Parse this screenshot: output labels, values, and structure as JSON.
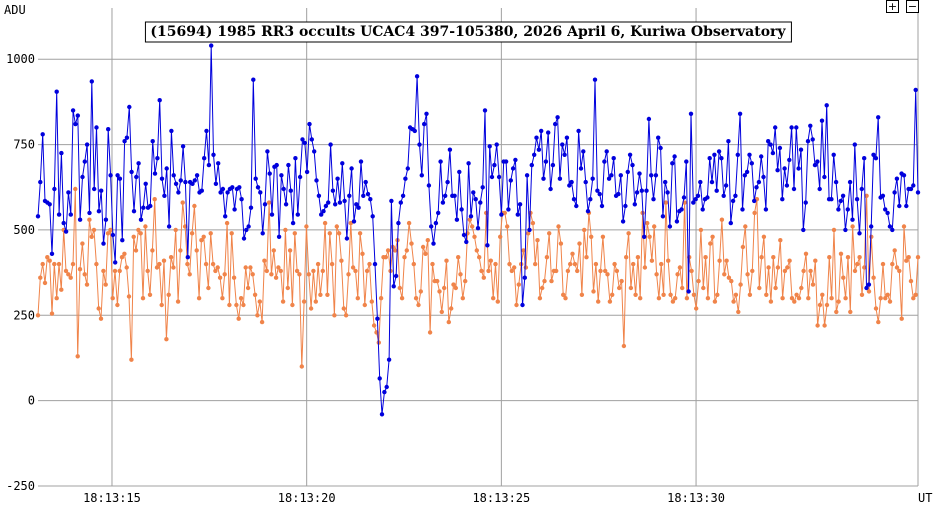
{
  "chart_data": {
    "type": "line",
    "title": "(15694) 1985 RR3 occults UCAC4 397-105380, 2026 April 6, Kuriwa Observatory",
    "ylabel": "ADU",
    "xlabel": "UT",
    "ylim": [
      -250,
      1150
    ],
    "xlim": [
      13.1,
      35.7
    ],
    "y_ticks": [
      -250,
      0,
      250,
      500,
      750,
      1000
    ],
    "x_ticks": [
      {
        "value": 15,
        "label": "18:13:15"
      },
      {
        "value": 20,
        "label": "18:13:20"
      },
      {
        "value": 25,
        "label": "18:13:25"
      },
      {
        "value": 30,
        "label": "18:13:30"
      }
    ],
    "grid": true,
    "legend": "none",
    "colors": {
      "target": "#0000dd",
      "comparison": "#f0844a",
      "grid": "#a0a0a0"
    },
    "series": [
      {
        "key": "target",
        "values": [
          540,
          640,
          780,
          585,
          580,
          575,
          430,
          620,
          905,
          545,
          725,
          520,
          495,
          610,
          545,
          850,
          810,
          835,
          530,
          655,
          700,
          750,
          550,
          935,
          620,
          800,
          555,
          615,
          460,
          530,
          795,
          660,
          485,
          405,
          660,
          650,
          470,
          760,
          770,
          860,
          670,
          555,
          655,
          695,
          530,
          565,
          635,
          565,
          570,
          760,
          665,
          710,
          880,
          650,
          600,
          680,
          510,
          790,
          660,
          635,
          610,
          645,
          745,
          640,
          420,
          640,
          635,
          645,
          660,
          610,
          615,
          710,
          790,
          690,
          1040,
          720,
          635,
          695,
          610,
          620,
          540,
          610,
          620,
          625,
          560,
          620,
          625,
          590,
          475,
          500,
          510,
          565,
          940,
          650,
          625,
          610,
          490,
          575,
          730,
          665,
          545,
          685,
          690,
          480,
          660,
          620,
          575,
          690,
          615,
          520,
          710,
          545,
          655,
          765,
          755,
          670,
          810,
          765,
          730,
          645,
          600,
          545,
          555,
          570,
          580,
          750,
          615,
          575,
          650,
          580,
          695,
          585,
          475,
          600,
          680,
          525,
          575,
          565,
          700,
          600,
          640,
          605,
          590,
          540,
          400,
          240,
          65,
          -40,
          25,
          40,
          120,
          585,
          335,
          365,
          520,
          580,
          600,
          650,
          680,
          800,
          795,
          790,
          950,
          750,
          660,
          810,
          840,
          630,
          510,
          460,
          520,
          550,
          700,
          580,
          600,
          640,
          735,
          600,
          600,
          530,
          670,
          560,
          485,
          465,
          695,
          540,
          610,
          590,
          505,
          580,
          625,
          850,
          455,
          745,
          655,
          690,
          750,
          655,
          545,
          700,
          700,
          560,
          645,
          680,
          705,
          545,
          575,
          280,
          360,
          660,
          500,
          690,
          720,
          770,
          735,
          790,
          650,
          700,
          785,
          620,
          690,
          810,
          830,
          650,
          750,
          720,
          770,
          630,
          640,
          590,
          570,
          790,
          680,
          730,
          640,
          555,
          590,
          650,
          940,
          615,
          605,
          570,
          700,
          730,
          650,
          660,
          710,
          600,
          605,
          660,
          525,
          570,
          670,
          720,
          690,
          575,
          610,
          665,
          615,
          480,
          615,
          825,
          660,
          590,
          660,
          770,
          740,
          540,
          640,
          610,
          510,
          695,
          715,
          525,
          555,
          560,
          595,
          700,
          320,
          840,
          580,
          590,
          600,
          640,
          560,
          590,
          595,
          710,
          640,
          720,
          615,
          730,
          710,
          600,
          630,
          760,
          520,
          585,
          600,
          720,
          840,
          560,
          660,
          670,
          720,
          695,
          585,
          625,
          640,
          715,
          655,
          560,
          760,
          750,
          725,
          800,
          675,
          740,
          590,
          680,
          630,
          705,
          800,
          620,
          800,
          680,
          735,
          500,
          580,
          760,
          805,
          765,
          690,
          700,
          620,
          820,
          655,
          865,
          590,
          590,
          720,
          640,
          560,
          585,
          600,
          500,
          560,
          640,
          530,
          750,
          590,
          490,
          620,
          710,
          330,
          340,
          510,
          720,
          710,
          830,
          595,
          600,
          560,
          550,
          510,
          500,
          610,
          650,
          570,
          665,
          660,
          570,
          620,
          620,
          630,
          910,
          610
        ]
      },
      {
        "key": "comparison",
        "values": [
          250,
          360,
          400,
          345,
          420,
          410,
          255,
          400,
          300,
          400,
          325,
          500,
          380,
          370,
          360,
          400,
          620,
          130,
          385,
          460,
          370,
          340,
          530,
          480,
          500,
          400,
          270,
          240,
          380,
          340,
          490,
          500,
          300,
          380,
          280,
          380,
          420,
          430,
          390,
          305,
          120,
          480,
          440,
          500,
          490,
          300,
          510,
          380,
          310,
          440,
          590,
          390,
          400,
          280,
          410,
          180,
          310,
          420,
          390,
          500,
          290,
          440,
          580,
          510,
          400,
          370,
          490,
          570,
          440,
          300,
          470,
          480,
          400,
          330,
          490,
          400,
          380,
          390,
          360,
          300,
          370,
          520,
          280,
          490,
          360,
          280,
          240,
          300,
          280,
          390,
          330,
          390,
          370,
          310,
          250,
          290,
          230,
          410,
          380,
          580,
          370,
          440,
          360,
          390,
          380,
          290,
          500,
          330,
          440,
          280,
          490,
          380,
          370,
          100,
          290,
          510,
          370,
          270,
          380,
          290,
          400,
          310,
          380,
          520,
          310,
          490,
          400,
          250,
          510,
          490,
          410,
          270,
          250,
          370,
          520,
          390,
          380,
          300,
          490,
          430,
          280,
          380,
          400,
          290,
          220,
          200,
          170,
          300,
          420,
          420,
          440,
          380,
          450,
          440,
          470,
          330,
          300,
          420,
          440,
          520,
          460,
          400,
          300,
          280,
          320,
          450,
          430,
          470,
          200,
          400,
          350,
          350,
          320,
          260,
          330,
          410,
          230,
          270,
          340,
          330,
          420,
          370,
          300,
          350,
          490,
          530,
          510,
          480,
          440,
          420,
          380,
          360,
          550,
          380,
          410,
          300,
          400,
          290,
          480,
          550,
          550,
          510,
          400,
          380,
          390,
          280,
          340,
          400,
          440,
          390,
          490,
          550,
          520,
          400,
          470,
          300,
          330,
          350,
          420,
          490,
          350,
          380,
          380,
          510,
          460,
          310,
          300,
          380,
          400,
          430,
          400,
          380,
          460,
          310,
          500,
          420,
          550,
          480,
          320,
          400,
          290,
          380,
          480,
          380,
          370,
          290,
          310,
          400,
          380,
          330,
          350,
          160,
          420,
          490,
          330,
          400,
          310,
          420,
          300,
          550,
          390,
          520,
          480,
          410,
          510,
          370,
          300,
          400,
          310,
          580,
          410,
          310,
          290,
          300,
          370,
          390,
          330,
          580,
          300,
          420,
          380,
          310,
          270,
          350,
          500,
          330,
          420,
          300,
          460,
          480,
          290,
          310,
          410,
          530,
          370,
          410,
          360,
          350,
          290,
          310,
          260,
          340,
          450,
          510,
          370,
          310,
          380,
          550,
          590,
          330,
          420,
          480,
          310,
          390,
          290,
          420,
          330,
          390,
          470,
          300,
          380,
          390,
          410,
          300,
          290,
          310,
          300,
          330,
          380,
          430,
          300,
          380,
          340,
          410,
          220,
          280,
          310,
          220,
          280,
          420,
          300,
          500,
          260,
          290,
          430,
          360,
          300,
          420,
          260,
          510,
          380,
          400,
          420,
          310,
          390,
          600,
          320,
          480,
          360,
          270,
          230,
          300,
          400,
          300,
          310,
          290,
          400,
          440,
          390,
          380,
          240,
          510,
          410,
          420,
          350,
          300,
          310,
          420
        ]
      }
    ]
  },
  "controls": {
    "zoom_in_label": "+",
    "zoom_out_label": "−"
  }
}
